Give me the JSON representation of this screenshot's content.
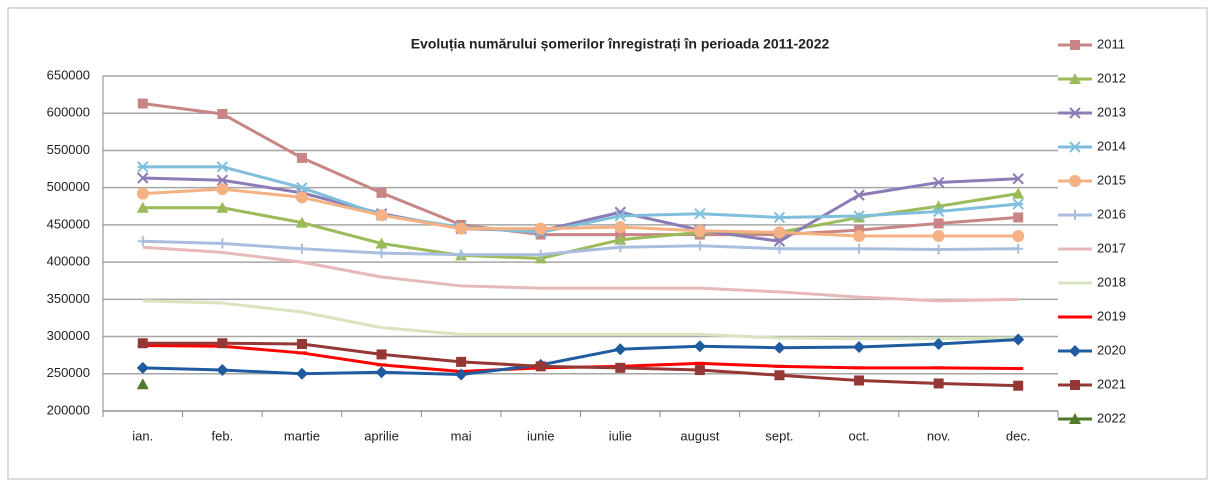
{
  "chart_data": {
    "type": "line",
    "title": "Evoluția numărului  șomerilor înregistrați în perioada 2011-2022",
    "categories": [
      "ian.",
      "feb.",
      "martie",
      "aprilie",
      "mai",
      "iunie",
      "iulie",
      "august",
      "sept.",
      "oct.",
      "nov.",
      "dec."
    ],
    "ylim": [
      200000,
      650000
    ],
    "yticks": [
      200000,
      250000,
      300000,
      350000,
      400000,
      450000,
      500000,
      550000,
      600000,
      650000
    ],
    "grid": true,
    "legend": "right",
    "series": [
      {
        "name": "2011",
        "color": "#c98585",
        "marker": "square",
        "values": [
          613000,
          599000,
          540000,
          493000,
          450000,
          437000,
          437000,
          437000,
          437000,
          443000,
          452000,
          460000
        ]
      },
      {
        "name": "2012",
        "color": "#9bbb59",
        "marker": "triangle",
        "values": [
          473000,
          473000,
          453000,
          425000,
          409000,
          405000,
          430000,
          440000,
          440000,
          460000,
          475000,
          492000
        ]
      },
      {
        "name": "2013",
        "color": "#8c7bb5",
        "marker": "x",
        "values": [
          513000,
          510000,
          493000,
          465000,
          445000,
          442000,
          467000,
          443000,
          428000,
          490000,
          507000,
          512000
        ]
      },
      {
        "name": "2014",
        "color": "#7fbfdc",
        "marker": "star",
        "values": [
          528000,
          528000,
          500000,
          463000,
          447000,
          440000,
          462000,
          465000,
          460000,
          462000,
          468000,
          478000
        ]
      },
      {
        "name": "2015",
        "color": "#f5b183",
        "marker": "circle",
        "values": [
          492000,
          498000,
          487000,
          463000,
          445000,
          445000,
          447000,
          442000,
          440000,
          435000,
          435000,
          435000
        ]
      },
      {
        "name": "2016",
        "color": "#a9bedf",
        "marker": "plus",
        "values": [
          428000,
          425000,
          418000,
          412000,
          410000,
          410000,
          420000,
          422000,
          418000,
          418000,
          417000,
          418000
        ]
      },
      {
        "name": "2017",
        "color": "#e6b9b8",
        "marker": "none",
        "values": [
          420000,
          413000,
          400000,
          380000,
          368000,
          365000,
          365000,
          365000,
          360000,
          353000,
          348000,
          350000
        ]
      },
      {
        "name": "2018",
        "color": "#d7e4bd",
        "marker": "none",
        "values": [
          348000,
          345000,
          333000,
          312000,
          303000,
          303000,
          303000,
          303000,
          298000,
          297000,
          297000,
          298000
        ]
      },
      {
        "name": "2019",
        "color": "#ff0000",
        "marker": "dash",
        "values": [
          288000,
          287000,
          278000,
          262000,
          253000,
          258000,
          260000,
          264000,
          260000,
          258000,
          258000,
          257000
        ]
      },
      {
        "name": "2020",
        "color": "#1f5b9e",
        "marker": "diamond",
        "values": [
          258000,
          255000,
          250000,
          252000,
          249000,
          262000,
          283000,
          287000,
          285000,
          286000,
          290000,
          296000
        ]
      },
      {
        "name": "2021",
        "color": "#953735",
        "marker": "square",
        "values": [
          291000,
          291000,
          290000,
          276000,
          266000,
          260000,
          258000,
          255000,
          248000,
          241000,
          237000,
          234000
        ]
      },
      {
        "name": "2022",
        "color": "#4f7a28",
        "marker": "triangle",
        "values": [
          236000,
          null,
          null,
          null,
          null,
          null,
          null,
          null,
          null,
          null,
          null,
          null
        ]
      }
    ]
  }
}
